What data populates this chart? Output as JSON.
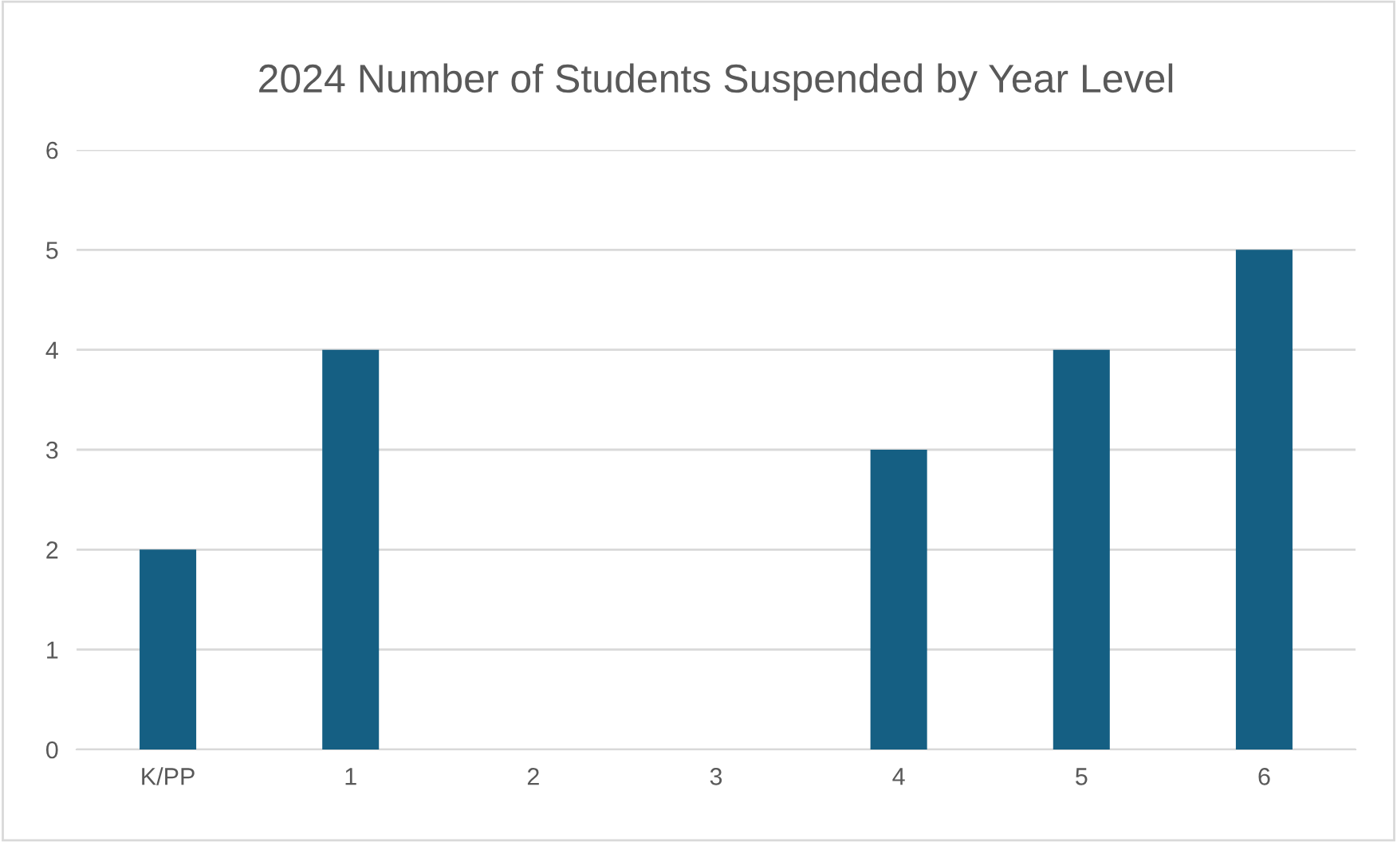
{
  "chart_data": {
    "type": "bar",
    "title": "2024 Number of Students Suspended by Year Level",
    "categories": [
      "K/PP",
      "1",
      "2",
      "3",
      "4",
      "5",
      "6"
    ],
    "values": [
      2,
      4,
      0,
      0,
      3,
      4,
      5
    ],
    "color": "#155f83",
    "ylim": [
      0,
      6
    ],
    "yticks": [
      0,
      1,
      2,
      3,
      4,
      5,
      6
    ],
    "grid": "y",
    "legend": false
  }
}
